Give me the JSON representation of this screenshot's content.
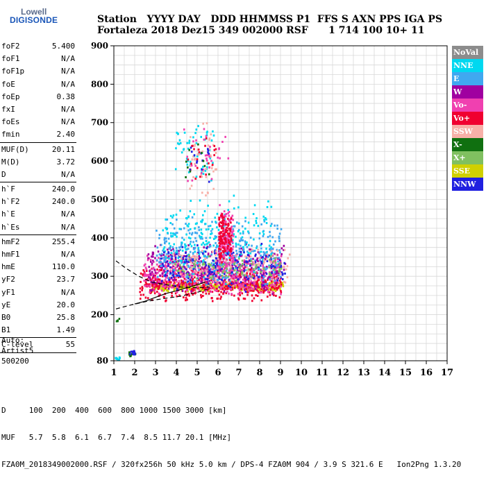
{
  "logo": {
    "line1": "Lowell",
    "line2": "DIGISONDE"
  },
  "header": {
    "row1": "Station   YYYY DAY   DDD HHMMSS P1  FFS S AXN PPS IGA PS",
    "row2": "Fortaleza 2018 Dez15 349 002000 RSF      1 714 100 10+ 11"
  },
  "params": [
    {
      "label": "foF2",
      "value": "5.400"
    },
    {
      "label": "foF1",
      "value": "N/A"
    },
    {
      "label": "foF1p",
      "value": "N/A"
    },
    {
      "label": "foE",
      "value": "N/A"
    },
    {
      "label": "foEp",
      "value": "0.38"
    },
    {
      "label": "fxI",
      "value": "N/A"
    },
    {
      "label": "foEs",
      "value": "N/A"
    },
    {
      "label": "fmin",
      "value": "2.40"
    },
    {
      "sep": true
    },
    {
      "label": "MUF(D)",
      "value": "20.11"
    },
    {
      "label": "M(D)",
      "value": "3.72"
    },
    {
      "label": "D",
      "value": "N/A"
    },
    {
      "sep": true
    },
    {
      "label": "h`F",
      "value": "240.0"
    },
    {
      "label": "h`F2",
      "value": "240.0"
    },
    {
      "label": "h`E",
      "value": "N/A"
    },
    {
      "label": "h`Es",
      "value": "N/A"
    },
    {
      "sep": true
    },
    {
      "label": "hmF2",
      "value": "255.4"
    },
    {
      "label": "hmF1",
      "value": "N/A"
    },
    {
      "label": "hmE",
      "value": "110.0"
    },
    {
      "label": "yF2",
      "value": "23.7"
    },
    {
      "label": "yF1",
      "value": "N/A"
    },
    {
      "label": "yE",
      "value": "20.0"
    },
    {
      "label": "B0",
      "value": "25.8"
    },
    {
      "label": "B1",
      "value": "1.49"
    },
    {
      "sep": true
    },
    {
      "label": "C-level",
      "value": "55"
    },
    {
      "sep": true
    }
  ],
  "auto": {
    "line1": "Auto:",
    "line2": "Artist5",
    "line3": "500200"
  },
  "legend": [
    {
      "label": "NoVal",
      "color": "#8c8c8c"
    },
    {
      "label": "NNE",
      "color": "#00d8f0"
    },
    {
      "label": "E",
      "color": "#40a8f0"
    },
    {
      "label": "W",
      "color": "#a000a0"
    },
    {
      "label": "Vo-",
      "color": "#f040b0"
    },
    {
      "label": "Vo+",
      "color": "#f00030"
    },
    {
      "label": "SSW",
      "color": "#f8b0a8"
    },
    {
      "label": "X-",
      "color": "#107010"
    },
    {
      "label": "X+",
      "color": "#80c060"
    },
    {
      "label": "SSE",
      "color": "#d0d000"
    },
    {
      "label": "NNW",
      "color": "#2020e0"
    }
  ],
  "footer": {
    "line1": "D     100  200  400  600  800 1000 1500 3000 [km]",
    "line2": "MUF   5.7  5.8  6.1  6.7  7.4  8.5 11.7 20.1 [MHz]",
    "line3": "FZA0M_2018349002000.RSF / 320fx256h 50 kHz 5.0 km / DPS-4 FZA0M 904 / 3.9 S 321.6 E   Ion2Png 1.3.20"
  },
  "chart_data": {
    "type": "scatter",
    "xlim": [
      1,
      17
    ],
    "ylim": [
      80,
      900
    ],
    "xticks": [
      1,
      2,
      3,
      4,
      5,
      6,
      7,
      8,
      9,
      10,
      11,
      12,
      13,
      14,
      15,
      16,
      17
    ],
    "yticks": [
      80,
      200,
      300,
      400,
      500,
      600,
      700,
      800,
      900
    ],
    "grid": true,
    "legend_position": "right",
    "clusters": [
      {
        "series": "SSE",
        "xmin": 2.8,
        "xmax": 9.1,
        "ymin": 262,
        "ymax": 290,
        "n": 380
      },
      {
        "series": "Vo+",
        "xmin": 2.2,
        "xmax": 9.0,
        "ymin": 235,
        "ymax": 330,
        "n": 520
      },
      {
        "series": "Vo-",
        "xmin": 2.4,
        "xmax": 9.0,
        "ymin": 250,
        "ymax": 370,
        "n": 520
      },
      {
        "series": "W",
        "xmin": 2.6,
        "xmax": 9.2,
        "ymin": 250,
        "ymax": 400,
        "n": 320
      },
      {
        "series": "E",
        "xmin": 3.0,
        "xmax": 9.0,
        "ymin": 270,
        "ymax": 460,
        "n": 320
      },
      {
        "series": "NNE",
        "xmin": 3.3,
        "xmax": 8.6,
        "ymin": 280,
        "ymax": 520,
        "n": 220
      },
      {
        "series": "NNW",
        "xmin": 3.2,
        "xmax": 9.2,
        "ymin": 260,
        "ymax": 390,
        "n": 180
      },
      {
        "series": "SSW",
        "xmin": 3.5,
        "xmax": 9.4,
        "ymin": 270,
        "ymax": 380,
        "n": 140
      },
      {
        "series": "X+",
        "xmin": 3.8,
        "xmax": 9.0,
        "ymin": 290,
        "ymax": 360,
        "n": 90
      },
      {
        "series": "Vo-",
        "xmin": 6.0,
        "xmax": 6.7,
        "ymin": 300,
        "ymax": 490,
        "n": 160
      },
      {
        "series": "Vo+",
        "xmin": 6.0,
        "xmax": 6.6,
        "ymin": 330,
        "ymax": 470,
        "n": 120
      },
      {
        "series": "NNE",
        "xmin": 3.9,
        "xmax": 5.8,
        "ymin": 530,
        "ymax": 720,
        "n": 55
      },
      {
        "series": "SSW",
        "xmin": 4.6,
        "xmax": 5.9,
        "ymin": 500,
        "ymax": 720,
        "n": 45
      },
      {
        "series": "Vo-",
        "xmin": 4.3,
        "xmax": 6.5,
        "ymin": 520,
        "ymax": 700,
        "n": 30
      },
      {
        "series": "Vo+",
        "xmin": 4.5,
        "xmax": 5.9,
        "ymin": 520,
        "ymax": 690,
        "n": 22
      },
      {
        "series": "NNW",
        "xmin": 4.6,
        "xmax": 5.6,
        "ymin": 540,
        "ymax": 680,
        "n": 14
      },
      {
        "series": "X-",
        "xmin": 4.4,
        "xmax": 5.8,
        "ymin": 530,
        "ymax": 660,
        "n": 10
      },
      {
        "series": "X-",
        "xmin": 1.7,
        "xmax": 2.0,
        "ymin": 92,
        "ymax": 106,
        "n": 12
      },
      {
        "series": "NNW",
        "xmin": 1.7,
        "xmax": 2.0,
        "ymin": 95,
        "ymax": 112,
        "n": 10
      },
      {
        "series": "NNE",
        "xmin": 1.0,
        "xmax": 1.25,
        "ymin": 84,
        "ymax": 92,
        "n": 10
      },
      {
        "series": "X-",
        "xmin": 1.05,
        "xmax": 1.25,
        "ymin": 180,
        "ymax": 195,
        "n": 4
      }
    ],
    "curves": [
      {
        "style": "dashed",
        "points": [
          [
            1.1,
            340
          ],
          [
            1.6,
            320
          ],
          [
            2.2,
            300
          ],
          [
            2.8,
            285
          ],
          [
            3.5,
            278
          ],
          [
            4.2,
            272
          ],
          [
            5.0,
            270
          ],
          [
            5.6,
            272
          ]
        ]
      },
      {
        "style": "dashed",
        "points": [
          [
            1.1,
            215
          ],
          [
            1.8,
            225
          ],
          [
            2.6,
            235
          ],
          [
            3.4,
            242
          ],
          [
            4.2,
            248
          ],
          [
            5.0,
            258
          ],
          [
            5.6,
            268
          ]
        ]
      },
      {
        "style": "solid",
        "points": [
          [
            2.0,
            228
          ],
          [
            2.5,
            235
          ],
          [
            3.0,
            245
          ],
          [
            3.5,
            255
          ],
          [
            4.0,
            262
          ],
          [
            4.5,
            270
          ],
          [
            5.0,
            278
          ],
          [
            5.4,
            285
          ]
        ]
      }
    ]
  }
}
